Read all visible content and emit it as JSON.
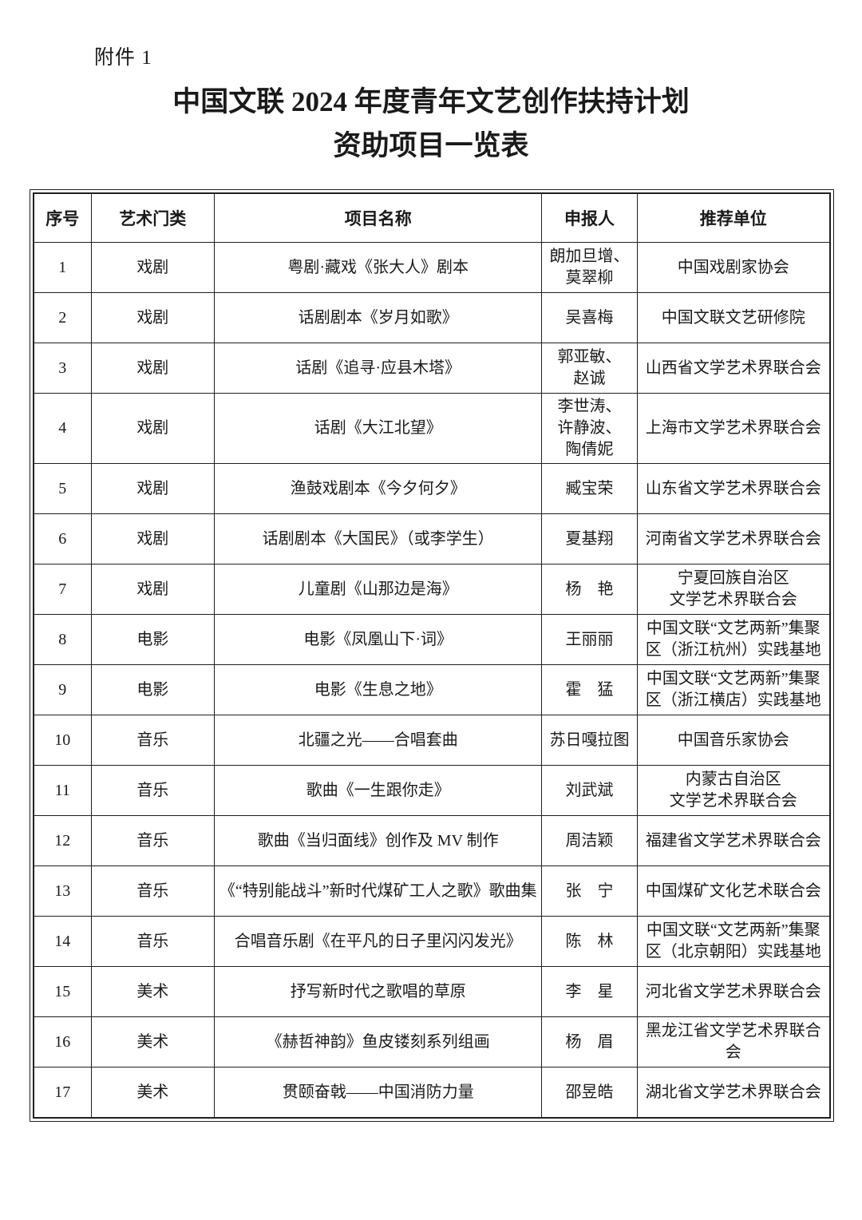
{
  "page": {
    "attachment_label": "附件 1",
    "title_line1": "中国文联 2024 年度青年文艺创作扶持计划",
    "title_line2": "资助项目一览表"
  },
  "colors": {
    "text": "#1a1a1a",
    "border": "#1f1f1f",
    "background": "#ffffff"
  },
  "table": {
    "columns": [
      {
        "key": "no",
        "label": "序号"
      },
      {
        "key": "category",
        "label": "艺术门类"
      },
      {
        "key": "project",
        "label": "项目名称"
      },
      {
        "key": "applicant",
        "label": "申报人"
      },
      {
        "key": "unit",
        "label": "推荐单位"
      }
    ],
    "rows": [
      {
        "no": "1",
        "category": "戏剧",
        "project": "粤剧·藏戏《张大人》剧本",
        "applicant": "朗加旦增、\n莫翠柳",
        "unit": "中国戏剧家协会"
      },
      {
        "no": "2",
        "category": "戏剧",
        "project": "话剧剧本《岁月如歌》",
        "applicant": "吴喜梅",
        "unit": "中国文联文艺研修院"
      },
      {
        "no": "3",
        "category": "戏剧",
        "project": "话剧《追寻·应县木塔》",
        "applicant": "郭亚敏、\n赵诚",
        "unit": "山西省文学艺术界联合会"
      },
      {
        "no": "4",
        "category": "戏剧",
        "project": "话剧《大江北望》",
        "applicant": "李世涛、\n许静波、\n陶倩妮",
        "unit": "上海市文学艺术界联合会"
      },
      {
        "no": "5",
        "category": "戏剧",
        "project": "渔鼓戏剧本《今夕何夕》",
        "applicant": "臧宝荣",
        "unit": "山东省文学艺术界联合会"
      },
      {
        "no": "6",
        "category": "戏剧",
        "project": "话剧剧本《大国民》（或李学生）",
        "applicant": "夏基翔",
        "unit": "河南省文学艺术界联合会"
      },
      {
        "no": "7",
        "category": "戏剧",
        "project": "儿童剧《山那边是海》",
        "applicant": "杨　艳",
        "unit": "宁夏回族自治区\n文学艺术界联合会"
      },
      {
        "no": "8",
        "category": "电影",
        "project": "电影《凤凰山下·词》",
        "applicant": "王丽丽",
        "unit": "中国文联“文艺两新”集聚\n区（浙江杭州）实践基地"
      },
      {
        "no": "9",
        "category": "电影",
        "project": "电影《生息之地》",
        "applicant": "霍　猛",
        "unit": "中国文联“文艺两新”集聚\n区（浙江横店）实践基地"
      },
      {
        "no": "10",
        "category": "音乐",
        "project": "北疆之光——合唱套曲",
        "applicant": "苏日嘎拉图",
        "unit": "中国音乐家协会"
      },
      {
        "no": "11",
        "category": "音乐",
        "project": "歌曲《一生跟你走》",
        "applicant": "刘武斌",
        "unit": "内蒙古自治区\n文学艺术界联合会"
      },
      {
        "no": "12",
        "category": "音乐",
        "project": "歌曲《当归面线》创作及 MV 制作",
        "applicant": "周洁颖",
        "unit": "福建省文学艺术界联合会"
      },
      {
        "no": "13",
        "category": "音乐",
        "project": "《“特别能战斗”新时代煤矿工人之歌》歌曲集",
        "applicant": "张　宁",
        "unit": "中国煤矿文化艺术联合会"
      },
      {
        "no": "14",
        "category": "音乐",
        "project": "合唱音乐剧《在平凡的日子里闪闪发光》",
        "applicant": "陈　林",
        "unit": "中国文联“文艺两新”集聚\n区（北京朝阳）实践基地"
      },
      {
        "no": "15",
        "category": "美术",
        "project": "抒写新时代之歌唱的草原",
        "applicant": "李　星",
        "unit": "河北省文学艺术界联合会"
      },
      {
        "no": "16",
        "category": "美术",
        "project": "《赫哲神韵》鱼皮镂刻系列组画",
        "applicant": "杨　眉",
        "unit": "黑龙江省文学艺术界联合会"
      },
      {
        "no": "17",
        "category": "美术",
        "project": "贯颐奋戟——中国消防力量",
        "applicant": "邵昱皓",
        "unit": "湖北省文学艺术界联合会"
      }
    ]
  }
}
